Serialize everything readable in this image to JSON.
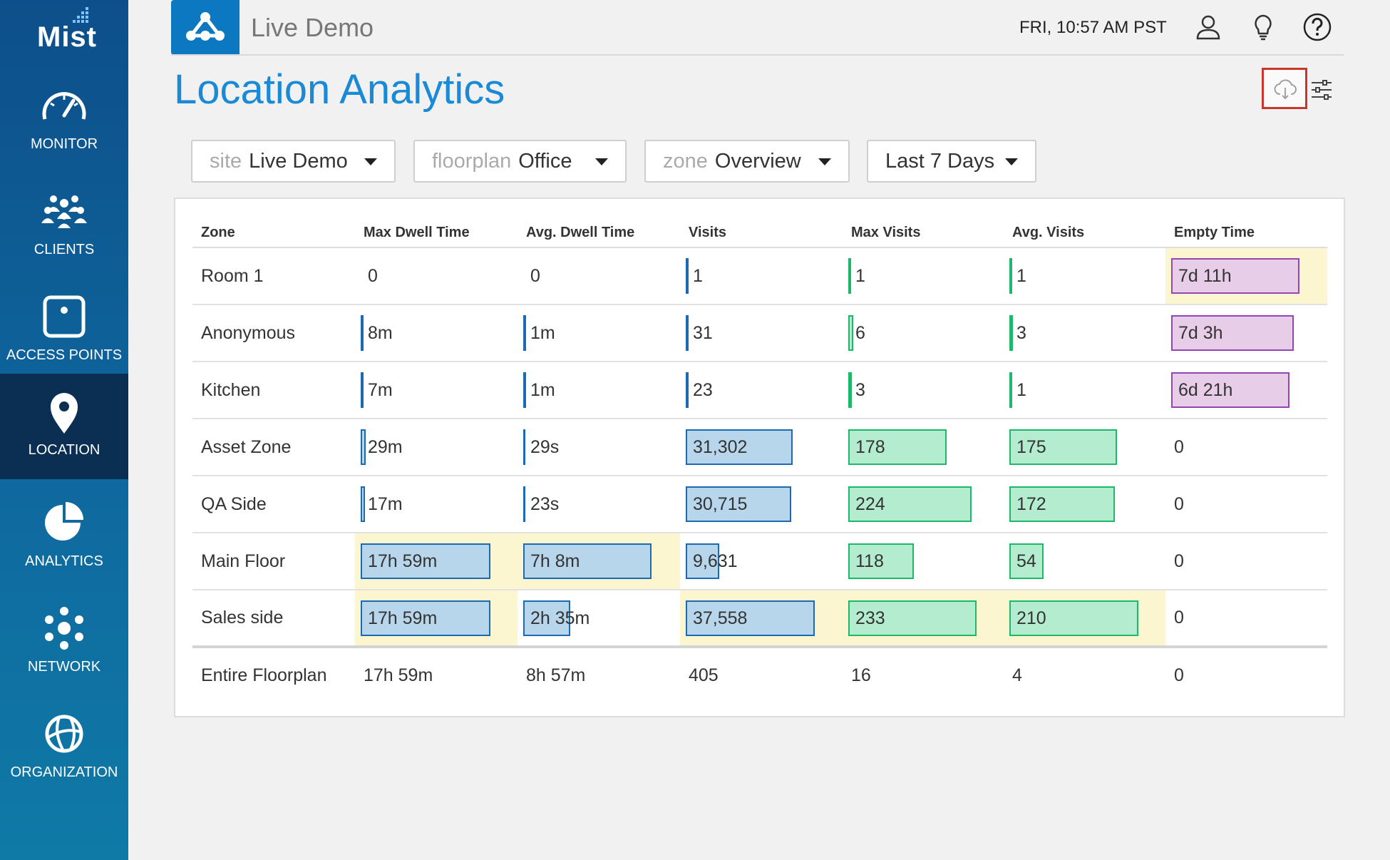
{
  "app": {
    "logo": "Mist",
    "site_title": "Live Demo",
    "time": "FRI, 10:57 AM PST"
  },
  "nav": [
    {
      "label": "MONITOR",
      "icon": "speedometer-icon"
    },
    {
      "label": "CLIENTS",
      "icon": "clients-icon"
    },
    {
      "label": "ACCESS POINTS",
      "icon": "access-point-icon"
    },
    {
      "label": "LOCATION",
      "icon": "location-pin-icon",
      "active": true
    },
    {
      "label": "ANALYTICS",
      "icon": "pie-chart-icon"
    },
    {
      "label": "NETWORK",
      "icon": "network-icon"
    },
    {
      "label": "ORGANIZATION",
      "icon": "globe-icon"
    }
  ],
  "page_title": "Location Analytics",
  "filters": {
    "site": {
      "label": "site",
      "value": "Live Demo"
    },
    "floorplan": {
      "label": "floorplan",
      "value": "Office"
    },
    "zone": {
      "label": "zone",
      "value": "Overview"
    },
    "range": {
      "value": "Last 7 Days"
    }
  },
  "table": {
    "headers": [
      "Zone",
      "Max Dwell Time",
      "Avg. Dwell Time",
      "Visits",
      "Max Visits",
      "Avg. Visits",
      "Empty Time"
    ],
    "rows": [
      {
        "zone": "Room 1",
        "max_dwell": "0",
        "avg_dwell": "0",
        "visits": "1",
        "max_visits": "1",
        "avg_visits": "1",
        "empty": "7d 11h"
      },
      {
        "zone": "Anonymous",
        "max_dwell": "8m",
        "avg_dwell": "1m",
        "visits": "31",
        "max_visits": "6",
        "avg_visits": "3",
        "empty": "7d 3h"
      },
      {
        "zone": "Kitchen",
        "max_dwell": "7m",
        "avg_dwell": "1m",
        "visits": "23",
        "max_visits": "3",
        "avg_visits": "1",
        "empty": "6d 21h"
      },
      {
        "zone": "Asset Zone",
        "max_dwell": "29m",
        "avg_dwell": "29s",
        "visits": "31,302",
        "max_visits": "178",
        "avg_visits": "175",
        "empty": "0"
      },
      {
        "zone": "QA Side",
        "max_dwell": "17m",
        "avg_dwell": "23s",
        "visits": "30,715",
        "max_visits": "224",
        "avg_visits": "172",
        "empty": "0"
      },
      {
        "zone": "Main Floor",
        "max_dwell": "17h 59m",
        "avg_dwell": "7h 8m",
        "visits": "9,631",
        "max_visits": "118",
        "avg_visits": "54",
        "empty": "0"
      },
      {
        "zone": "Sales side",
        "max_dwell": "17h 59m",
        "avg_dwell": "2h 35m",
        "visits": "37,558",
        "max_visits": "233",
        "avg_visits": "210",
        "empty": "0"
      }
    ],
    "total": {
      "zone": "Entire Floorplan",
      "max_dwell": "17h 59m",
      "avg_dwell": "8h 57m",
      "visits": "405",
      "max_visits": "16",
      "avg_visits": "4",
      "empty": "0"
    }
  },
  "colors": {
    "accent": "#1a8ad6",
    "highlight": "#fbf6cf",
    "blue_bar": "#b7d6ec",
    "green_bar": "#b4ecd0",
    "purple_bar": "#e8cde9",
    "download_outline": "#c9362b"
  }
}
